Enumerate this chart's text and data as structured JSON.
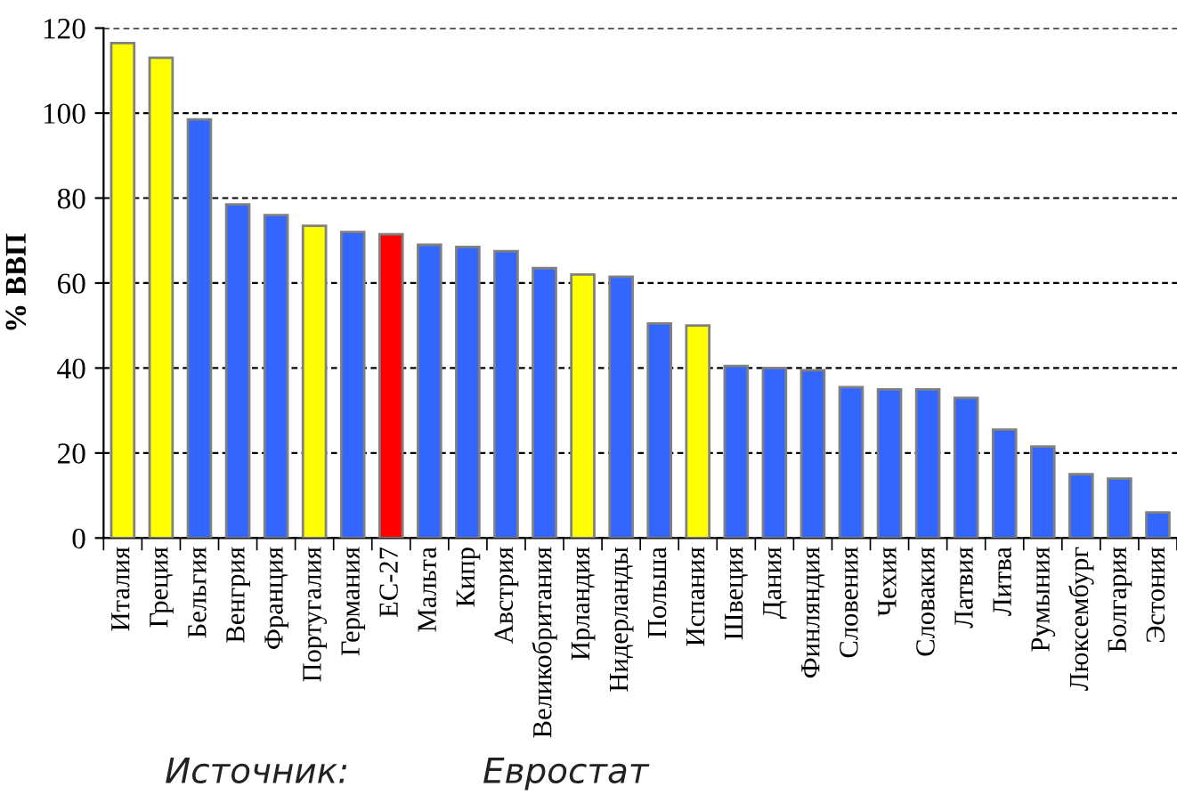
{
  "chart_data": {
    "type": "bar",
    "ylabel": "% ВВП",
    "categories": [
      "Италия",
      "Греция",
      "Бельгия",
      "Венгрия",
      "Франция",
      "Португалия",
      "Германия",
      "ЕС-27",
      "Мальта",
      "Кипр",
      "Австрия",
      "Великобритания",
      "Ирландия",
      "Нидерланды",
      "Польша",
      "Испания",
      "Швеция",
      "Дания",
      "Финляндия",
      "Словения",
      "Чехия",
      "Словакия",
      "Латвия",
      "Литва",
      "Румыния",
      "Люксембург",
      "Болгария",
      "Эстония"
    ],
    "values": [
      116.5,
      113,
      98.5,
      78.5,
      76,
      73.5,
      72,
      71.5,
      69,
      68.5,
      67.5,
      63.5,
      62,
      61.5,
      50.5,
      50,
      40.5,
      40,
      39.5,
      35.5,
      35,
      35,
      33,
      25.5,
      21.5,
      15,
      14,
      6
    ],
    "colors": [
      "#ffff00",
      "#ffff00",
      "#3366ff",
      "#3366ff",
      "#3366ff",
      "#ffff00",
      "#3366ff",
      "#ff0000",
      "#3366ff",
      "#3366ff",
      "#3366ff",
      "#3366ff",
      "#ffff00",
      "#3366ff",
      "#3366ff",
      "#ffff00",
      "#3366ff",
      "#3366ff",
      "#3366ff",
      "#3366ff",
      "#3366ff",
      "#3366ff",
      "#3366ff",
      "#3366ff",
      "#3366ff",
      "#3366ff",
      "#3366ff",
      "#3366ff"
    ],
    "ylim": [
      0,
      120
    ],
    "yticks": [
      0,
      20,
      40,
      60,
      80,
      100,
      120
    ],
    "grid": "y",
    "legend": false,
    "annotations": [
      "Источник:",
      "Евростат"
    ]
  }
}
